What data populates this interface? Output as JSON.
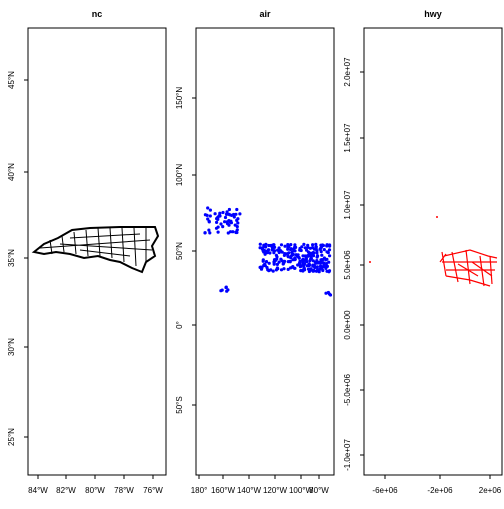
{
  "panels": [
    {
      "title": "nc",
      "x_labels": [
        "84°W",
        "82°W",
        "80°W",
        "78°W",
        "76°W"
      ],
      "y_labels": [
        "45°N",
        "40°N",
        "35°N",
        "30°N",
        "25°N"
      ]
    },
    {
      "title": "air",
      "x_labels": [
        "180°",
        "160°W",
        "140°W",
        "120°W",
        "100°W",
        "80°W"
      ],
      "y_labels": [
        "150°N",
        "100°N",
        "50°N",
        "0°",
        "50°S"
      ]
    },
    {
      "title": "hwy",
      "x_labels": [
        "-6e+06",
        "-2e+06",
        "2e+06"
      ],
      "y_labels": [
        "2.0e+07",
        "1.5e+07",
        "1.0e+07",
        "5.0e+06",
        "0.0e+00",
        "-5.0e+06",
        "-1.0e+07"
      ]
    }
  ]
}
